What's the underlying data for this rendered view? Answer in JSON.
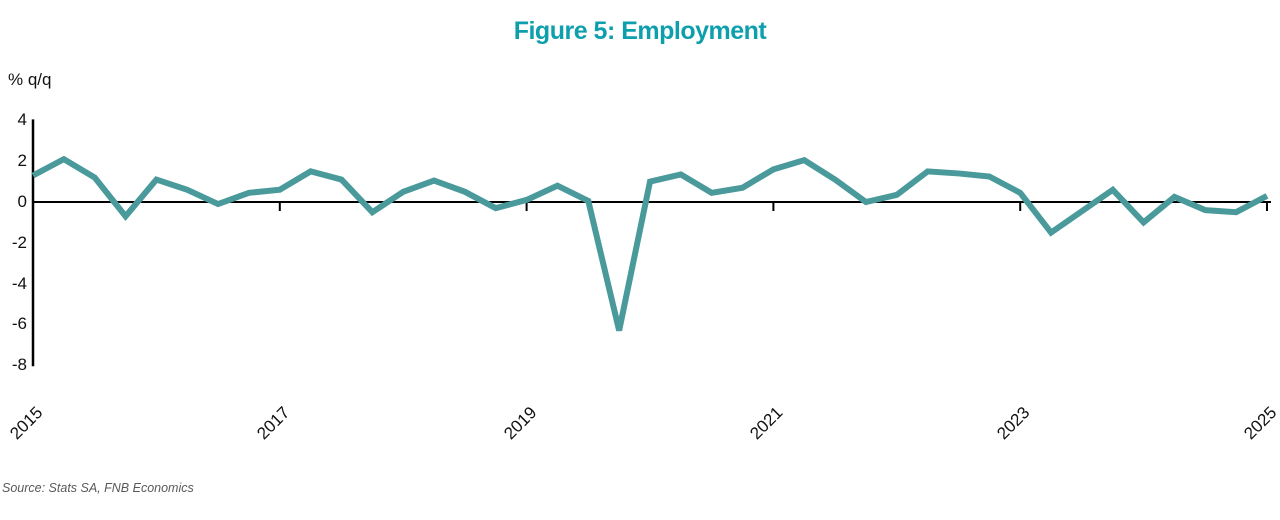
{
  "title": "Figure 5: Employment",
  "source_note": "Source: Stats SA, FNB Economics",
  "chart_data": {
    "type": "line",
    "title": "Figure 5: Employment",
    "ylabel": "% q/q",
    "xlabel": "",
    "series_name": "Employment growth, % q/q",
    "frequency": "quarterly",
    "start_period": "2015Q1",
    "end_period": "2025Q1",
    "values": [
      1.3,
      2.1,
      1.2,
      -0.7,
      1.1,
      0.6,
      -0.1,
      0.45,
      0.6,
      1.5,
      1.1,
      -0.5,
      0.5,
      1.05,
      0.5,
      -0.3,
      0.1,
      0.8,
      0.05,
      -6.3,
      1.0,
      1.35,
      0.45,
      0.7,
      1.6,
      2.05,
      1.1,
      0.0,
      0.35,
      1.5,
      1.4,
      1.25,
      0.45,
      -1.5,
      -0.45,
      0.6,
      -1.0,
      0.25,
      -0.4,
      -0.5,
      0.3
    ],
    "ylim": [
      -8,
      4
    ],
    "yticks": [
      4,
      2,
      0,
      -2,
      -4,
      -6,
      -8
    ],
    "xtick_labels": [
      "2015",
      "2017",
      "2019",
      "2021",
      "2023",
      "2025"
    ],
    "xtick_indices": [
      0,
      8,
      16,
      24,
      32,
      40
    ],
    "grid": false,
    "legend": "none",
    "colors": {
      "line": "#4a9a9c",
      "title": "#0e9fad",
      "axis": "#000000",
      "source_text": "#595959"
    }
  }
}
